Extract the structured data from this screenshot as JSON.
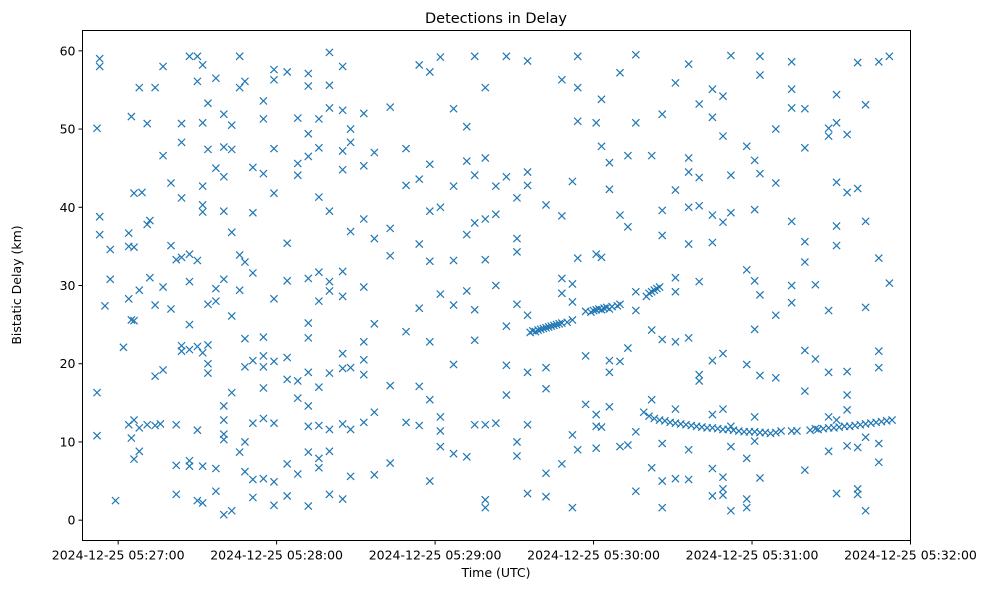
{
  "chart_data": {
    "type": "scatter",
    "title": "Detections in Delay",
    "xlabel": "Time (UTC)",
    "ylabel": "Bistatic Delay (km)",
    "x_unit": "seconds after 2024-12-25 05:27:00",
    "xlim": [
      -13.5,
      300
    ],
    "ylim": [
      -2.6,
      62.6
    ],
    "grid": false,
    "marker": "x",
    "color": "#1f77b4",
    "x_ticks": [
      {
        "value": 0,
        "label": "2024-12-25 05:27:00"
      },
      {
        "value": 60,
        "label": "2024-12-25 05:28:00"
      },
      {
        "value": 120,
        "label": "2024-12-25 05:29:00"
      },
      {
        "value": 180,
        "label": "2024-12-25 05:30:00"
      },
      {
        "value": 240,
        "label": "2024-12-25 05:31:00"
      },
      {
        "value": 300,
        "label": "2024-12-25 05:32:00"
      }
    ],
    "y_ticks": [
      {
        "value": 0,
        "label": "0"
      },
      {
        "value": 10,
        "label": "10"
      },
      {
        "value": 20,
        "label": "20"
      },
      {
        "value": 30,
        "label": "30"
      },
      {
        "value": 40,
        "label": "40"
      },
      {
        "value": 50,
        "label": "50"
      },
      {
        "value": 60,
        "label": "60"
      }
    ],
    "columns": [
      [
        -8,
        [
          50.1,
          16.3,
          10.8
        ]
      ],
      [
        -7,
        [
          58.0,
          59.0,
          38.8,
          36.5
        ]
      ],
      [
        -5,
        [
          27.4
        ]
      ],
      [
        -3,
        [
          30.8,
          34.6
        ]
      ],
      [
        -1,
        [
          2.5
        ]
      ],
      [
        2,
        [
          22.1
        ]
      ],
      [
        4,
        [
          36.7,
          35.0,
          28.3,
          12.2
        ]
      ],
      [
        5,
        [
          51.6,
          25.6,
          10.5
        ]
      ],
      [
        6,
        [
          34.9,
          25.5,
          41.8,
          7.8,
          12.8
        ]
      ],
      [
        8,
        [
          55.3,
          29.4,
          11.8,
          8.8
        ]
      ],
      [
        9,
        [
          41.9
        ]
      ],
      [
        11,
        [
          50.7,
          12.2,
          37.8
        ]
      ],
      [
        12,
        [
          38.3,
          31.0
        ]
      ],
      [
        14,
        [
          55.3,
          27.5,
          12.1,
          18.4
        ]
      ],
      [
        16,
        [
          12.3
        ]
      ],
      [
        17,
        [
          58.0,
          46.6,
          29.8,
          19.2
        ]
      ],
      [
        20,
        [
          35.1,
          27.0,
          43.1
        ]
      ],
      [
        22,
        [
          12.2,
          33.3,
          7.0,
          3.3
        ]
      ],
      [
        24,
        [
          48.3,
          41.2,
          21.6,
          22.3,
          33.6,
          50.7
        ]
      ],
      [
        27,
        [
          59.3,
          34.0,
          30.5,
          25.0,
          21.8,
          6.9,
          7.6
        ]
      ],
      [
        30,
        [
          59.3,
          56.1,
          11.5,
          2.5,
          33.2,
          22.2
        ]
      ],
      [
        32,
        [
          42.7,
          39.4,
          40.3,
          58.2,
          50.8,
          21.4,
          2.2,
          6.9
        ]
      ],
      [
        34,
        [
          53.3,
          47.4,
          27.6,
          20.0,
          22.4,
          18.8
        ]
      ],
      [
        37,
        [
          56.5,
          45.0,
          29.6,
          28.0,
          3.7,
          6.6
        ]
      ],
      [
        40,
        [
          51.9,
          47.7,
          43.9,
          39.5,
          30.8,
          14.6,
          11.0,
          12.8,
          0.7,
          10.3
        ]
      ],
      [
        43,
        [
          50.5,
          47.4,
          36.8,
          26.1,
          1.2,
          16.3
        ]
      ],
      [
        46,
        [
          59.3,
          55.3,
          33.9,
          29.4,
          8.7
        ]
      ],
      [
        48,
        [
          56.1,
          33.0,
          23.2,
          19.6,
          6.2,
          10.0
        ]
      ],
      [
        51,
        [
          45.1,
          39.3,
          31.6,
          20.4,
          12.4,
          5.2,
          2.9
        ]
      ],
      [
        55,
        [
          53.6,
          51.3,
          44.3,
          19.6,
          23.4,
          21.0,
          16.9,
          13.0,
          5.3
        ]
      ],
      [
        59,
        [
          57.6,
          56.3,
          47.5,
          41.8,
          28.3,
          20.3,
          12.4,
          1.9,
          4.9
        ]
      ],
      [
        64,
        [
          57.3,
          35.4,
          30.6,
          20.8,
          18.0,
          7.2,
          3.1
        ]
      ],
      [
        68,
        [
          51.4,
          45.6,
          44.1,
          17.8,
          15.6,
          5.9
        ]
      ],
      [
        72,
        [
          57.1,
          55.5,
          49.4,
          46.5,
          30.9,
          25.2,
          23.3,
          18.9,
          14.6,
          12.0,
          8.7,
          1.8
        ]
      ],
      [
        76,
        [
          51.3,
          47.6,
          41.3,
          31.7,
          28.0,
          17.0,
          12.1,
          7.9,
          6.7
        ]
      ],
      [
        80,
        [
          59.8,
          55.6,
          52.7,
          39.5,
          30.5,
          29.3,
          18.8,
          11.6,
          8.8,
          3.3
        ]
      ],
      [
        85,
        [
          58.0,
          52.4,
          47.2,
          44.8,
          31.8,
          28.6,
          21.3,
          19.4,
          12.3,
          2.7
        ]
      ],
      [
        88,
        [
          50.0,
          48.3,
          36.9,
          19.5,
          11.6,
          5.6
        ]
      ],
      [
        93,
        [
          52.0,
          45.3,
          38.5,
          29.8,
          22.8,
          20.5,
          18.6,
          12.5
        ]
      ],
      [
        97,
        [
          47.0,
          36.0,
          25.1,
          13.8,
          5.8
        ]
      ],
      [
        103,
        [
          52.8,
          37.3,
          33.8,
          17.2,
          7.3
        ]
      ],
      [
        109,
        [
          47.5,
          42.8,
          24.1,
          12.5
        ]
      ],
      [
        114,
        [
          58.2,
          43.6,
          35.3,
          27.1,
          17.1,
          12.1
        ]
      ],
      [
        118,
        [
          57.3,
          45.5,
          39.5,
          33.1,
          22.8,
          15.4,
          5.0
        ]
      ],
      [
        122,
        [
          59.2,
          40.0,
          28.9,
          13.2,
          11.4,
          9.4
        ]
      ],
      [
        127,
        [
          52.6,
          42.7,
          33.2,
          27.5,
          19.9,
          8.5
        ]
      ],
      [
        132,
        [
          50.3,
          36.5,
          45.9,
          29.3,
          8.1
        ]
      ],
      [
        135,
        [
          59.3,
          44.1,
          38.0,
          26.9,
          12.2,
          23.0
        ]
      ],
      [
        139,
        [
          55.3,
          46.3,
          38.5,
          33.3,
          12.2,
          2.6,
          1.6
        ]
      ],
      [
        143,
        [
          42.7,
          39.1,
          30.0,
          12.4
        ]
      ],
      [
        147,
        [
          43.9,
          59.3,
          24.8,
          19.8,
          16.0
        ]
      ],
      [
        151,
        [
          41.2,
          36.0,
          34.3,
          27.6,
          8.2,
          10.0
        ]
      ],
      [
        155,
        [
          58.7,
          44.5,
          42.8,
          26.2,
          12.2,
          3.4,
          18.9
        ]
      ],
      [
        156,
        [
          24.0
        ]
      ],
      [
        157,
        [
          24.2
        ]
      ],
      [
        158,
        [
          24.1
        ]
      ],
      [
        159,
        [
          24.3
        ]
      ],
      [
        160,
        [
          24.4
        ]
      ],
      [
        161,
        [
          24.5
        ]
      ],
      [
        162,
        [
          24.6,
          40.3,
          19.5,
          16.8,
          6.0,
          3.0
        ]
      ],
      [
        163,
        [
          24.7
        ]
      ],
      [
        164,
        [
          24.8
        ]
      ],
      [
        165,
        [
          24.9
        ]
      ],
      [
        166,
        [
          25.0
        ]
      ],
      [
        167,
        [
          25.1
        ]
      ],
      [
        168,
        [
          25.2,
          56.3,
          38.9,
          30.9,
          7.2,
          29.0
        ]
      ],
      [
        170,
        [
          25.3
        ]
      ],
      [
        172,
        [
          25.6,
          43.3,
          30.2,
          10.9,
          27.9,
          1.6
        ]
      ],
      [
        174,
        [
          59.3,
          55.3,
          51.0,
          33.5,
          9.0
        ]
      ],
      [
        177,
        [
          14.8,
          21.0,
          26.7
        ]
      ],
      [
        179,
        [
          26.6
        ]
      ],
      [
        180,
        [
          26.8
        ]
      ],
      [
        181,
        [
          26.9,
          50.8,
          34.0,
          12.0,
          13.5,
          9.2
        ]
      ],
      [
        182,
        [
          27.0
        ]
      ],
      [
        183,
        [
          26.9,
          53.8,
          47.8,
          33.6,
          11.9
        ]
      ],
      [
        184,
        [
          27.1
        ]
      ],
      [
        185,
        [
          27.2
        ]
      ],
      [
        186,
        [
          27.0,
          45.7,
          42.3,
          20.4,
          18.9,
          14.5
        ]
      ],
      [
        187,
        [
          27.3
        ]
      ],
      [
        189,
        [
          27.4
        ]
      ],
      [
        190,
        [
          27.6,
          57.2,
          39.0,
          20.3,
          9.4
        ]
      ],
      [
        193,
        [
          46.6,
          37.5,
          22.0,
          9.6
        ]
      ],
      [
        196,
        [
          59.5,
          50.8,
          29.2,
          26.8,
          11.3,
          3.7
        ]
      ],
      [
        199,
        [
          13.8
        ]
      ],
      [
        200,
        [
          28.6
        ]
      ],
      [
        201,
        [
          13.3,
          29.0
        ]
      ],
      [
        202,
        [
          29.2,
          46.6,
          24.3,
          6.7,
          15.4
        ]
      ],
      [
        203,
        [
          13.0,
          29.4
        ]
      ],
      [
        204,
        [
          29.6
        ]
      ],
      [
        205,
        [
          12.8,
          29.8
        ]
      ],
      [
        206,
        [
          51.9,
          36.4,
          39.6,
          23.1,
          9.8,
          1.6,
          5.0
        ]
      ],
      [
        207,
        [
          12.7
        ]
      ],
      [
        209,
        [
          12.5
        ]
      ],
      [
        211,
        [
          12.4,
          55.9,
          42.2,
          31.0,
          29.2,
          22.8,
          14.2,
          5.3
        ]
      ],
      [
        213,
        [
          12.3
        ]
      ],
      [
        215,
        [
          12.2
        ]
      ],
      [
        216,
        [
          58.3,
          46.3,
          44.5,
          40.0,
          35.3,
          23.3,
          9.0,
          5.2
        ]
      ],
      [
        217,
        [
          12.1
        ]
      ],
      [
        219,
        [
          12.0
        ]
      ],
      [
        220,
        [
          53.2,
          43.8,
          40.2,
          30.5,
          18.6,
          17.8
        ]
      ],
      [
        221,
        [
          11.9
        ]
      ],
      [
        223,
        [
          11.8
        ]
      ],
      [
        225,
        [
          11.8,
          55.1,
          51.5,
          39.0,
          35.5,
          20.4,
          13.5,
          3.1,
          6.6
        ]
      ],
      [
        227,
        [
          11.7
        ]
      ],
      [
        229,
        [
          11.6,
          54.2,
          49.1,
          38.1,
          21.3,
          14.2,
          3.2,
          5.5,
          4.0
        ]
      ],
      [
        231,
        [
          11.6
        ]
      ],
      [
        232,
        [
          59.4,
          44.1,
          39.3,
          1.2,
          12.0,
          9.4
        ]
      ],
      [
        233,
        [
          11.5
        ]
      ],
      [
        235,
        [
          11.4
        ]
      ],
      [
        237,
        [
          11.3
        ]
      ],
      [
        238,
        [
          47.8,
          32.0,
          19.9,
          7.9,
          2.7,
          1.6
        ]
      ],
      [
        239,
        [
          11.3
        ]
      ],
      [
        241,
        [
          11.3,
          46.0,
          39.7,
          30.6,
          24.4,
          13.2,
          10.1
        ]
      ],
      [
        243,
        [
          11.2,
          59.3,
          56.9,
          44.3,
          28.8,
          18.5,
          5.4
        ]
      ],
      [
        245,
        [
          11.2
        ]
      ],
      [
        247,
        [
          11.1
        ]
      ],
      [
        249,
        [
          11.2,
          50.0,
          43.1,
          26.2,
          18.2
        ]
      ],
      [
        251,
        [
          11.4
        ]
      ],
      [
        255,
        [
          58.6,
          55.1,
          52.7,
          38.2,
          30.0,
          27.8,
          11.4
        ]
      ],
      [
        257,
        [
          11.4
        ]
      ],
      [
        260,
        [
          52.6,
          47.6,
          35.6,
          33.0,
          21.7,
          6.4,
          16.5
        ]
      ],
      [
        262,
        [
          11.5
        ]
      ],
      [
        264,
        [
          30.1,
          20.6,
          11.7
        ]
      ],
      [
        265,
        [
          11.6
        ]
      ],
      [
        267,
        [
          11.7
        ]
      ],
      [
        269,
        [
          11.8,
          49.1,
          50.1,
          26.8,
          18.9,
          13.2,
          8.8
        ]
      ],
      [
        271,
        [
          11.8
        ]
      ],
      [
        272,
        [
          54.4,
          50.8,
          43.2,
          37.6,
          35.1,
          3.4,
          12.8
        ]
      ],
      [
        273,
        [
          11.9
        ]
      ],
      [
        275,
        [
          12.0
        ]
      ],
      [
        276,
        [
          49.3,
          41.9,
          19.0,
          16.0,
          14.1,
          9.5
        ]
      ],
      [
        277,
        [
          12.0
        ]
      ],
      [
        279,
        [
          12.1
        ]
      ],
      [
        280,
        [
          58.5,
          42.4,
          4.0,
          3.3,
          9.3
        ]
      ],
      [
        281,
        [
          12.2
        ]
      ],
      [
        283,
        [
          12.3,
          53.1,
          38.2,
          27.2,
          10.6,
          1.2
        ]
      ],
      [
        285,
        [
          12.4
        ]
      ],
      [
        287,
        [
          12.5
        ]
      ],
      [
        288,
        [
          58.6,
          19.5,
          21.6,
          33.5,
          9.8,
          7.4
        ]
      ],
      [
        289,
        [
          12.6
        ]
      ],
      [
        291,
        [
          12.7
        ]
      ],
      [
        292,
        [
          59.3,
          30.3
        ]
      ],
      [
        293,
        [
          12.8
        ]
      ]
    ]
  }
}
